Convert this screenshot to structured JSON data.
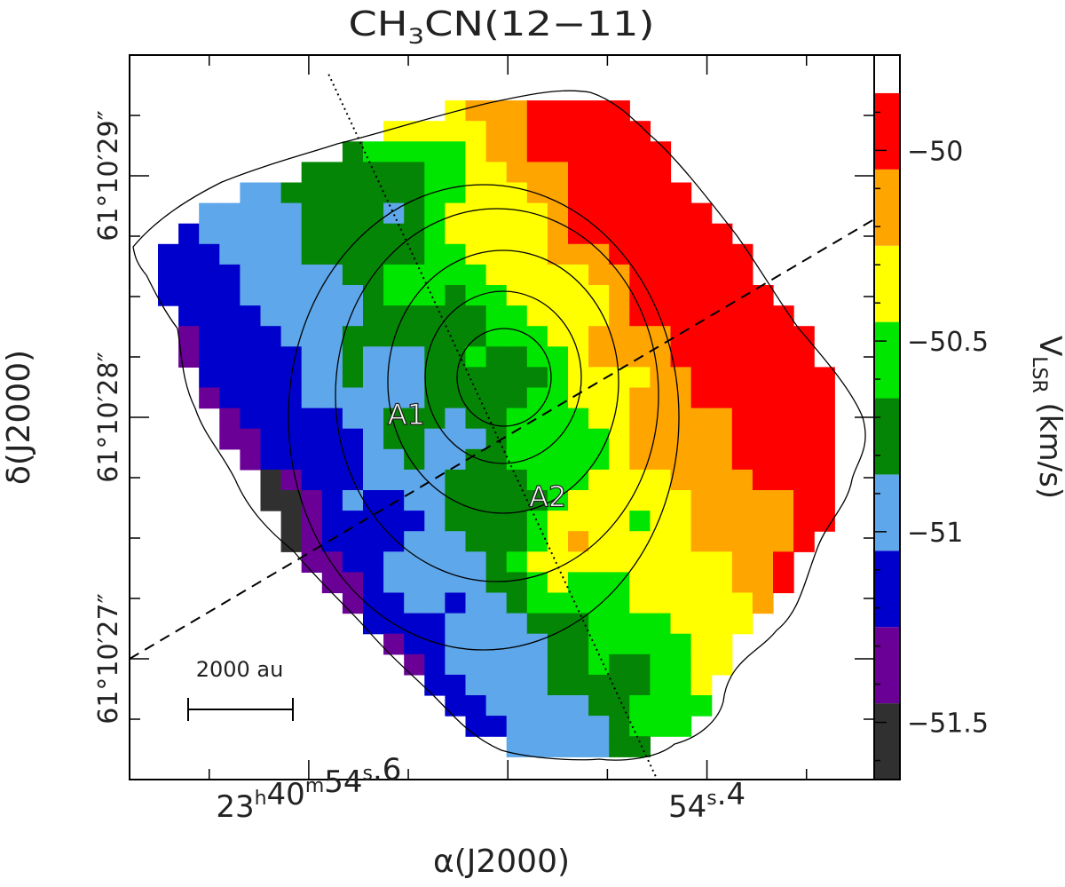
{
  "chart_data": {
    "type": "heatmap",
    "title": "CH3CN(12−11)",
    "title_parts": {
      "pre": "CH",
      "sub": "3",
      "post": "CN(12−11)"
    },
    "xlabel": "α(J2000)",
    "ylabel": "δ(J2000)",
    "xlim_sec": [
      54.69,
      54.316
    ],
    "ylim_arcsec": [
      26.5,
      29.5
    ],
    "x_ticks": [
      {
        "value": 54.6,
        "label": {
          "h": "23",
          "m": "40",
          "s_int": "54",
          "s_frac": "6"
        }
      },
      {
        "value": 54.4,
        "label": {
          "s_int": "54",
          "s_frac": "4"
        }
      }
    ],
    "y_ticks": [
      {
        "value": 29,
        "label": "61°10′29″"
      },
      {
        "value": 28,
        "label": "61°10′28″"
      },
      {
        "value": 27,
        "label": "61°10′27″"
      }
    ],
    "colorbar": {
      "label_pre": "V",
      "label_sub": "LSR",
      "label_post": " (km/s)",
      "vmin": -51.65,
      "vmax": -49.75,
      "levels": [
        -51.65,
        -51.45,
        -51.25,
        -51.05,
        -50.85,
        -50.65,
        -50.45,
        -50.25,
        -50.05,
        -49.85,
        -49.75
      ],
      "colors": [
        "#303030",
        "#6a0096",
        "#0000cc",
        "#5ea7ea",
        "#058505",
        "#00e600",
        "#ffff00",
        "#ffa500",
        "#ff0000"
      ],
      "tick_labels": [
        {
          "value": -50,
          "label": "−50"
        },
        {
          "value": -50.5,
          "label": "−50.5"
        },
        {
          "value": -51,
          "label": "−51"
        },
        {
          "value": -51.5,
          "label": "−51.5"
        }
      ]
    },
    "annotations": [
      {
        "label": "A1",
        "x_sec": 54.551,
        "y_arcsec": 27.97
      },
      {
        "label": "A2",
        "x_sec": 54.48,
        "y_arcsec": 27.63
      }
    ],
    "scale_bar": {
      "label": "2000 au"
    },
    "lines": [
      {
        "style": "dotted",
        "from": [
          54.59,
          29.42
        ],
        "to": [
          54.425,
          26.5
        ]
      },
      {
        "style": "dashed",
        "from": [
          54.69,
          27.0
        ],
        "to": [
          54.316,
          28.82
        ]
      }
    ],
    "contours_note": "5 nested intensity contours centred near A1 plus an outer emission boundary"
  }
}
